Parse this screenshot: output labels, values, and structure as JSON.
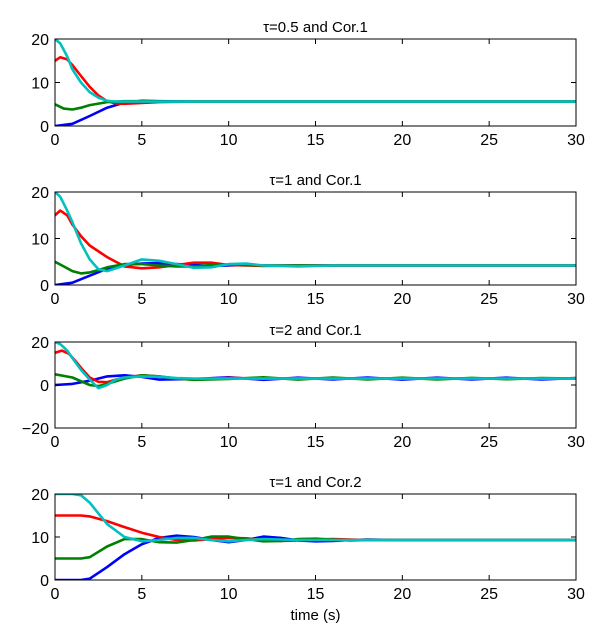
{
  "chart_data": [
    {
      "type": "line",
      "title": "τ=0.5 and Cor.1",
      "xlabel": "",
      "ylabel": "",
      "xlim": [
        0,
        30
      ],
      "ylim": [
        0,
        20
      ],
      "xticks": [
        "0",
        "5",
        "10",
        "15",
        "20",
        "25",
        "30"
      ],
      "yticks": [
        "0",
        "10",
        "20"
      ],
      "series": [
        {
          "color": "#0000ff",
          "x": [
            0,
            1,
            2,
            3,
            4,
            5,
            6,
            8,
            10,
            15,
            20,
            25,
            30
          ],
          "y": [
            0,
            0.5,
            2.3,
            4.2,
            5.4,
            5.8,
            5.7,
            5.6,
            5.6,
            5.6,
            5.6,
            5.6,
            5.6
          ]
        },
        {
          "color": "#ff0000",
          "x": [
            0,
            0.3,
            0.7,
            1,
            1.5,
            2,
            2.5,
            3,
            3.5,
            4,
            5,
            6,
            8,
            10,
            15,
            20,
            25,
            30
          ],
          "y": [
            15,
            15.8,
            15.3,
            14,
            11.5,
            9,
            7,
            5.7,
            5.2,
            5.1,
            5.3,
            5.5,
            5.6,
            5.6,
            5.6,
            5.6,
            5.6,
            5.6
          ]
        },
        {
          "color": "#008000",
          "x": [
            0,
            0.5,
            1,
            1.5,
            2,
            3,
            4,
            5,
            6,
            8,
            10,
            15,
            20,
            25,
            30
          ],
          "y": [
            5,
            4,
            3.8,
            4.2,
            4.8,
            5.5,
            5.7,
            5.7,
            5.6,
            5.6,
            5.6,
            5.6,
            5.6,
            5.6,
            5.6
          ]
        },
        {
          "color": "#00c0c0",
          "x": [
            0,
            0.3,
            0.7,
            1,
            1.5,
            2,
            2.5,
            3,
            3.5,
            4,
            5,
            6,
            8,
            10,
            15,
            20,
            25,
            30
          ],
          "y": [
            20,
            19,
            16,
            13,
            10,
            7.8,
            6.5,
            5.8,
            5.6,
            5.6,
            5.6,
            5.6,
            5.6,
            5.6,
            5.6,
            5.6,
            5.6,
            5.6
          ]
        }
      ]
    },
    {
      "type": "line",
      "title": "τ=1 and Cor.1",
      "xlabel": "",
      "ylabel": "",
      "xlim": [
        0,
        30
      ],
      "ylim": [
        0,
        20
      ],
      "xticks": [
        "0",
        "5",
        "10",
        "15",
        "20",
        "25",
        "30"
      ],
      "yticks": [
        "0",
        "10",
        "20"
      ],
      "series": [
        {
          "color": "#0000ff",
          "x": [
            0,
            1,
            2,
            3,
            4,
            5,
            6,
            7,
            8,
            9,
            10,
            11,
            12,
            14,
            16,
            20,
            25,
            30
          ],
          "y": [
            0,
            0.5,
            2,
            3.5,
            4.3,
            4.6,
            4.7,
            4.5,
            4.3,
            4.1,
            4.2,
            4.3,
            4.2,
            4.2,
            4.2,
            4.2,
            4.2,
            4.2
          ]
        },
        {
          "color": "#ff0000",
          "x": [
            0,
            0.3,
            0.7,
            1,
            1.5,
            2,
            3,
            4,
            5,
            6,
            7,
            8,
            9,
            10,
            12,
            15,
            20,
            25,
            30
          ],
          "y": [
            15,
            16,
            15,
            13,
            10.5,
            8.5,
            6,
            4,
            3.6,
            3.8,
            4.3,
            4.8,
            4.8,
            4.3,
            4.1,
            4.2,
            4.2,
            4.2,
            4.2
          ]
        },
        {
          "color": "#008000",
          "x": [
            0,
            0.5,
            1,
            1.5,
            2,
            2.5,
            3,
            4,
            5,
            6,
            7,
            8,
            9,
            10,
            12,
            14,
            16,
            20,
            25,
            30
          ],
          "y": [
            5,
            4,
            3,
            2.5,
            2.7,
            3.2,
            3.8,
            4.5,
            4.5,
            4.2,
            4,
            4,
            4.3,
            4.4,
            4.2,
            4.2,
            4.2,
            4.2,
            4.2,
            4.2
          ]
        },
        {
          "color": "#00c0c0",
          "x": [
            0,
            0.3,
            0.7,
            1,
            1.5,
            2,
            2.5,
            3,
            4,
            5,
            6,
            7,
            8,
            9,
            10,
            11,
            12,
            14,
            16,
            20,
            25,
            30
          ],
          "y": [
            20,
            19,
            16,
            13.5,
            9,
            5.5,
            3.4,
            3,
            4.2,
            5.5,
            5.2,
            4.5,
            3.7,
            3.8,
            4.5,
            4.6,
            4.2,
            4,
            4.2,
            4.2,
            4.2,
            4.2
          ]
        }
      ]
    },
    {
      "type": "line",
      "title": "τ=2 and Cor.1",
      "xlabel": "",
      "ylabel": "",
      "xlim": [
        0,
        30
      ],
      "ylim": [
        -20,
        20
      ],
      "xticks": [
        "0",
        "5",
        "10",
        "15",
        "20",
        "25",
        "30"
      ],
      "yticks": [
        "−20",
        "0",
        "20"
      ],
      "series": [
        {
          "color": "#0000ff",
          "x": [
            0,
            1,
            2,
            3,
            4,
            5,
            6,
            8,
            10,
            12,
            14,
            16,
            18,
            20,
            22,
            24,
            26,
            28,
            30
          ],
          "y": [
            0,
            0.5,
            2,
            4,
            4.5,
            3.8,
            2.5,
            2.8,
            3.6,
            2.4,
            3.4,
            2.6,
            3.5,
            2.5,
            3.4,
            2.6,
            3.4,
            2.6,
            3.2
          ]
        },
        {
          "color": "#ff0000",
          "x": [
            0,
            0.4,
            0.8,
            1.2,
            1.6,
            2,
            2.5,
            3,
            3.5,
            4,
            5,
            6,
            7,
            8,
            10,
            12,
            14,
            16,
            20,
            25,
            30
          ],
          "y": [
            15,
            16,
            14.5,
            11,
            7,
            3.5,
            1.5,
            1.3,
            2.5,
            3.5,
            4.5,
            4,
            3,
            2.5,
            3.3,
            3,
            3.1,
            3,
            3,
            3,
            3
          ]
        },
        {
          "color": "#008000",
          "x": [
            0,
            1,
            2,
            2.5,
            3,
            4,
            5,
            6,
            7,
            8,
            10,
            12,
            14,
            16,
            18,
            20,
            22,
            24,
            26,
            28,
            30
          ],
          "y": [
            5,
            3.5,
            0,
            -0.5,
            0.5,
            3,
            4.5,
            4,
            3,
            2.4,
            2.8,
            3.6,
            2.5,
            3.5,
            2.6,
            3.4,
            2.6,
            3.3,
            2.7,
            3.2,
            3
          ]
        },
        {
          "color": "#00c0c0",
          "x": [
            0,
            0.3,
            0.7,
            1,
            1.5,
            2,
            2.5,
            3,
            3.5,
            4,
            5,
            6,
            7,
            8,
            10,
            12,
            15,
            20,
            25,
            30
          ],
          "y": [
            20,
            19,
            16,
            12.5,
            7,
            2.5,
            -1.5,
            0,
            2.5,
            3.5,
            4,
            3.8,
            3.2,
            3,
            3,
            3,
            3,
            3,
            3,
            3
          ]
        }
      ]
    },
    {
      "type": "line",
      "title": "τ=1 and Cor.2",
      "xlabel": "time (s)",
      "ylabel": "",
      "xlim": [
        0,
        30
      ],
      "ylim": [
        0,
        20
      ],
      "xticks": [
        "0",
        "5",
        "10",
        "15",
        "20",
        "25",
        "30"
      ],
      "yticks": [
        "0",
        "10",
        "20"
      ],
      "series": [
        {
          "color": "#0000ff",
          "x": [
            0,
            1,
            1.5,
            2,
            3,
            4,
            5,
            6,
            7,
            8,
            9,
            10,
            11,
            12,
            13,
            14,
            15,
            16,
            17,
            18,
            20,
            22,
            25,
            30
          ],
          "y": [
            0,
            0,
            0,
            0.3,
            3,
            6,
            8.3,
            9.8,
            10.3,
            10,
            9.3,
            8.8,
            9.3,
            10.1,
            9.8,
            9.2,
            9,
            9.1,
            9.3,
            9.4,
            9.3,
            9.3,
            9.3,
            9.3
          ]
        },
        {
          "color": "#ff0000",
          "x": [
            0,
            1,
            1.5,
            2,
            3,
            4,
            5,
            6,
            7,
            8,
            9,
            10,
            11,
            12,
            13,
            14,
            15,
            16,
            18,
            20,
            25,
            30
          ],
          "y": [
            15,
            15,
            15,
            14.8,
            13.7,
            12.3,
            11,
            10,
            9.3,
            9.2,
            9.5,
            9.8,
            9.7,
            9.3,
            9.1,
            9.2,
            9.4,
            9.5,
            9.3,
            9.3,
            9.3,
            9.3
          ]
        },
        {
          "color": "#008000",
          "x": [
            0,
            1,
            1.5,
            2,
            3,
            4,
            5,
            6,
            7,
            8,
            9,
            10,
            11,
            12,
            13,
            14,
            15,
            16,
            17,
            18,
            20,
            22,
            25,
            30
          ],
          "y": [
            5,
            5,
            5,
            5.3,
            7.8,
            9.5,
            9.5,
            8.8,
            8.7,
            9.3,
            10.1,
            10.1,
            9.5,
            9,
            9.1,
            9.5,
            9.6,
            9.4,
            9.2,
            9.3,
            9.3,
            9.3,
            9.3,
            9.3
          ]
        },
        {
          "color": "#00c0c0",
          "x": [
            0,
            1,
            1.5,
            2,
            2.5,
            3,
            4,
            5,
            6,
            7,
            8,
            9,
            10,
            11,
            12,
            14,
            16,
            18,
            20,
            25,
            30
          ],
          "y": [
            20,
            20,
            19.7,
            18,
            15.5,
            13,
            10,
            9,
            9.3,
            9.8,
            9.8,
            9.3,
            9,
            9.3,
            9.5,
            9.3,
            9.3,
            9.3,
            9.3,
            9.3,
            9.3
          ]
        }
      ]
    }
  ]
}
